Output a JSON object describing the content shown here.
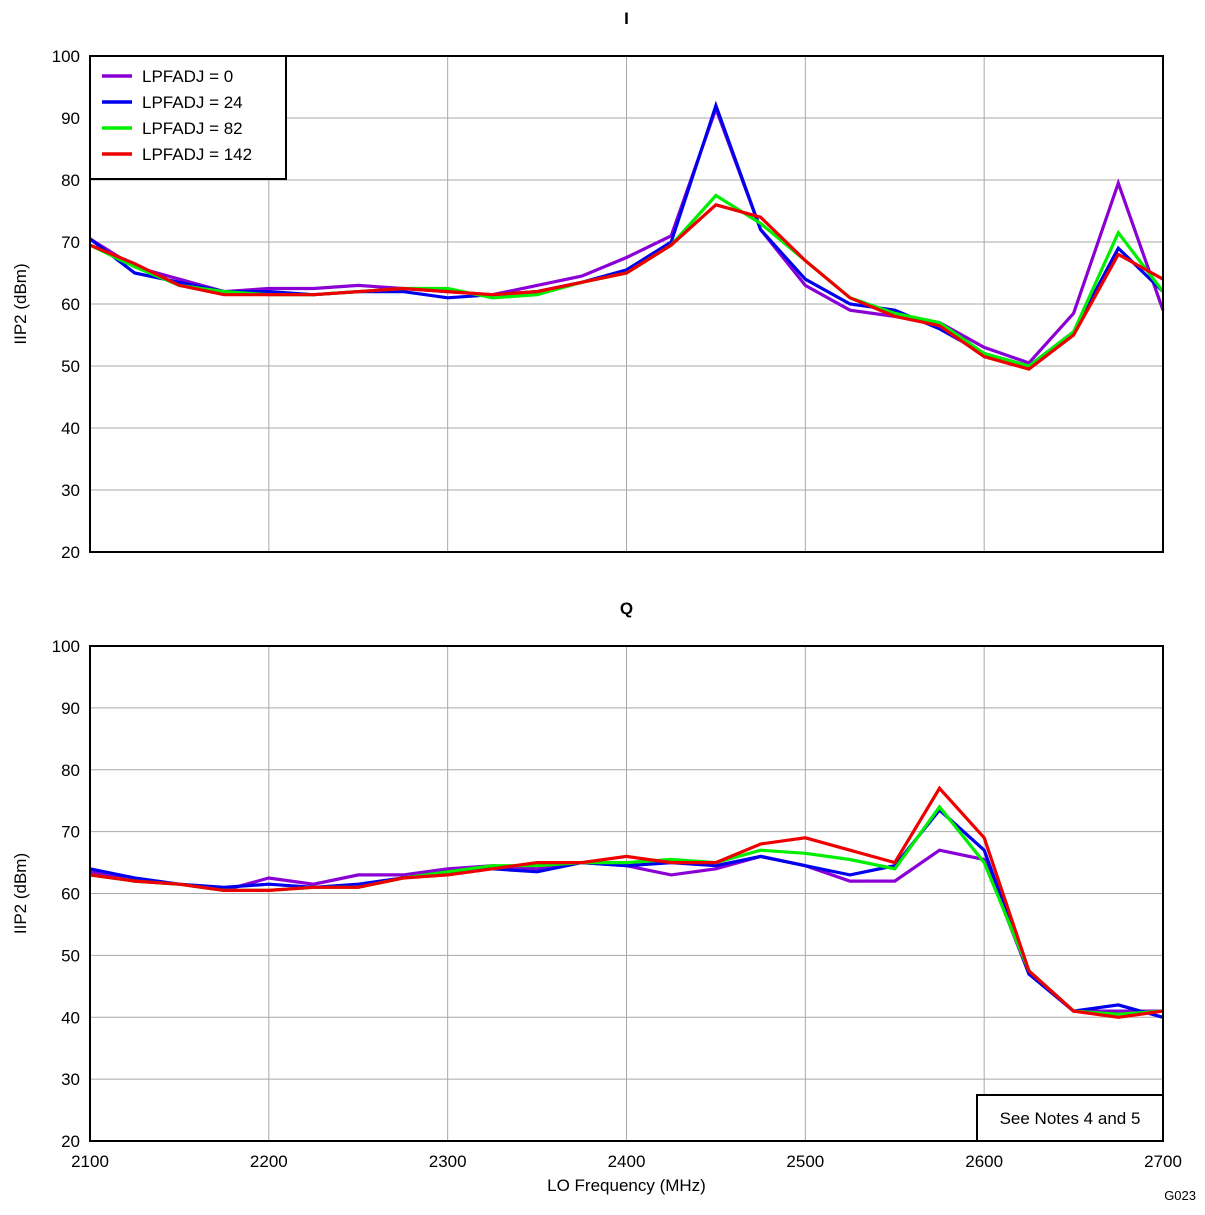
{
  "figure_id": "G023",
  "note": "See Notes 4 and 5",
  "chart_data": [
    {
      "type": "line",
      "title": "I",
      "xlabel": "",
      "ylabel": "IIP2 (dBm)",
      "xlim": [
        2100,
        2700
      ],
      "ylim": [
        20,
        100
      ],
      "xticks": [
        2100,
        2200,
        2300,
        2400,
        2500,
        2600,
        2700
      ],
      "yticks": [
        20,
        30,
        40,
        50,
        60,
        70,
        80,
        90,
        100
      ],
      "grid": true,
      "legend_position": "top-left",
      "x": [
        2100,
        2125,
        2150,
        2175,
        2200,
        2225,
        2250,
        2275,
        2300,
        2325,
        2350,
        2375,
        2400,
        2425,
        2450,
        2475,
        2500,
        2525,
        2550,
        2575,
        2600,
        2625,
        2650,
        2675,
        2700
      ],
      "series": [
        {
          "name": "LPFADJ = 0",
          "color": "#8a00d4",
          "values": [
            70.5,
            66,
            64,
            62,
            62.5,
            62.5,
            63,
            62.5,
            62,
            61.5,
            63,
            64.5,
            67.5,
            71,
            91.5,
            72,
            63,
            59,
            58,
            57,
            53,
            50.5,
            58.5,
            79.5,
            59
          ]
        },
        {
          "name": "LPFADJ = 24",
          "color": "#0000ee",
          "values": [
            70.5,
            65,
            63.5,
            62,
            62,
            61.5,
            62,
            62,
            61,
            61.5,
            62,
            63.5,
            65.5,
            70,
            92,
            72,
            64,
            60,
            59,
            56,
            52,
            50,
            55.5,
            69,
            62
          ]
        },
        {
          "name": "LPFADJ = 82",
          "color": "#00ee00",
          "values": [
            69.5,
            66,
            63,
            62,
            61.5,
            61.5,
            62,
            62.5,
            62.5,
            61,
            61.5,
            63.5,
            65,
            69.5,
            77.5,
            73,
            67,
            61,
            58.5,
            57,
            52,
            50,
            55.5,
            71.5,
            62
          ]
        },
        {
          "name": "LPFADJ = 142",
          "color": "#ee0000",
          "values": [
            69.5,
            66.5,
            63,
            61.5,
            61.5,
            61.5,
            62,
            62.5,
            62,
            61.5,
            62,
            63.5,
            65,
            69.5,
            76,
            74,
            67,
            61,
            58,
            56.5,
            51.5,
            49.5,
            55,
            68,
            64
          ]
        }
      ]
    },
    {
      "type": "line",
      "title": "Q",
      "xlabel": "LO Frequency (MHz)",
      "ylabel": "IIP2 (dBm)",
      "xlim": [
        2100,
        2700
      ],
      "ylim": [
        20,
        100
      ],
      "xticks": [
        2100,
        2200,
        2300,
        2400,
        2500,
        2600,
        2700
      ],
      "yticks": [
        20,
        30,
        40,
        50,
        60,
        70,
        80,
        90,
        100
      ],
      "grid": true,
      "x": [
        2100,
        2125,
        2150,
        2175,
        2200,
        2225,
        2250,
        2275,
        2300,
        2325,
        2350,
        2375,
        2400,
        2425,
        2450,
        2475,
        2500,
        2525,
        2550,
        2575,
        2600,
        2625,
        2650,
        2675,
        2700
      ],
      "series": [
        {
          "name": "LPFADJ = 0",
          "color": "#8a00d4",
          "values": [
            63.5,
            62,
            61.5,
            60.5,
            62.5,
            61.5,
            63,
            63,
            64,
            64.5,
            64,
            65,
            64.5,
            63,
            64,
            66,
            64.5,
            62,
            62,
            67,
            65.5,
            47,
            41,
            41,
            41
          ]
        },
        {
          "name": "LPFADJ = 24",
          "color": "#0000ee",
          "values": [
            64,
            62.5,
            61.5,
            61,
            61.5,
            61,
            61.5,
            62.5,
            63.5,
            64,
            63.5,
            65,
            64.5,
            65,
            64.5,
            66,
            64.5,
            63,
            64.5,
            73.5,
            67,
            47,
            41,
            42,
            40
          ]
        },
        {
          "name": "LPFADJ = 82",
          "color": "#00ee00",
          "values": [
            63,
            62,
            61.5,
            60.5,
            60.5,
            61,
            61,
            62.5,
            63.5,
            64.5,
            64.5,
            65,
            65,
            65.5,
            65,
            67,
            66.5,
            65.5,
            64,
            74,
            65,
            47.5,
            41,
            40.5,
            41
          ]
        },
        {
          "name": "LPFADJ = 142",
          "color": "#ee0000",
          "values": [
            63,
            62,
            61.5,
            60.5,
            60.5,
            61,
            61,
            62.5,
            63,
            64,
            65,
            65,
            66,
            65,
            65,
            68,
            69,
            67,
            65,
            77,
            69,
            47.5,
            41,
            40,
            41
          ]
        }
      ]
    }
  ]
}
